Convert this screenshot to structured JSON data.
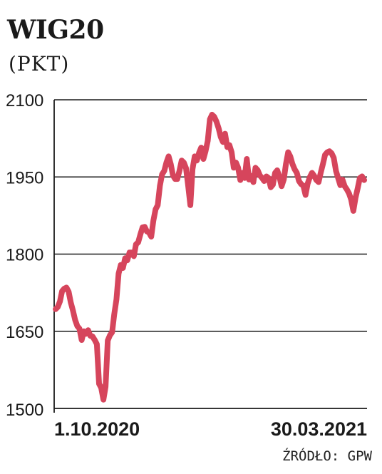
{
  "header": {
    "title": "WIG20",
    "subtitle": "(PKT)"
  },
  "footer": {
    "source": "ŹRÓDŁO: GPW"
  },
  "colors": {
    "line": "#d6455c",
    "text": "#1a1a1a",
    "grid": "#1a1a1a"
  },
  "chart_data": {
    "type": "line",
    "title": "WIG20",
    "ylabel": "(PKT)",
    "xlabel": "",
    "ylim": [
      1500,
      2100
    ],
    "yticks": [
      1500,
      1650,
      1800,
      1950,
      2100
    ],
    "xticks": [
      "1.10.2020",
      "30.03.2021"
    ],
    "grid": true,
    "series": [
      {
        "values": [
          1693,
          1697,
          1708,
          1728,
          1733,
          1735,
          1727,
          1706,
          1690,
          1672,
          1660,
          1655,
          1633,
          1650,
          1645,
          1652,
          1641,
          1640,
          1633,
          1625,
          1548,
          1540,
          1517,
          1542,
          1632,
          1642,
          1648,
          1683,
          1712,
          1762,
          1779,
          1773,
          1792,
          1788,
          1803,
          1803,
          1796,
          1819,
          1823,
          1838,
          1852,
          1853,
          1844,
          1842,
          1834,
          1865,
          1887,
          1895,
          1933,
          1955,
          1962,
          1978,
          1990,
          1975,
          1953,
          1946,
          1946,
          1962,
          1982,
          1978,
          1967,
          1933,
          1895,
          1965,
          1990,
          1982,
          1997,
          2007,
          1985,
          2000,
          2020,
          2062,
          2071,
          2067,
          2058,
          2045,
          2028,
          2018,
          2034,
          2008,
          2012,
          1998,
          1968,
          1978,
          1968,
          1944,
          1958,
          1948,
          1985,
          1945,
          1952,
          1940,
          1968,
          1963,
          1953,
          1948,
          1942,
          1951,
          1948,
          1930,
          1935,
          1958,
          1963,
          1950,
          1932,
          1945,
          1975,
          1998,
          1990,
          1975,
          1965,
          1958,
          1942,
          1936,
          1933,
          1915,
          1937,
          1950,
          1958,
          1952,
          1944,
          1940,
          1958,
          1975,
          1993,
          1998,
          2000,
          1996,
          1987,
          1962,
          1948,
          1934,
          1945,
          1932,
          1926,
          1918,
          1906,
          1884,
          1909,
          1928,
          1948,
          1951,
          1944
        ]
      }
    ]
  }
}
